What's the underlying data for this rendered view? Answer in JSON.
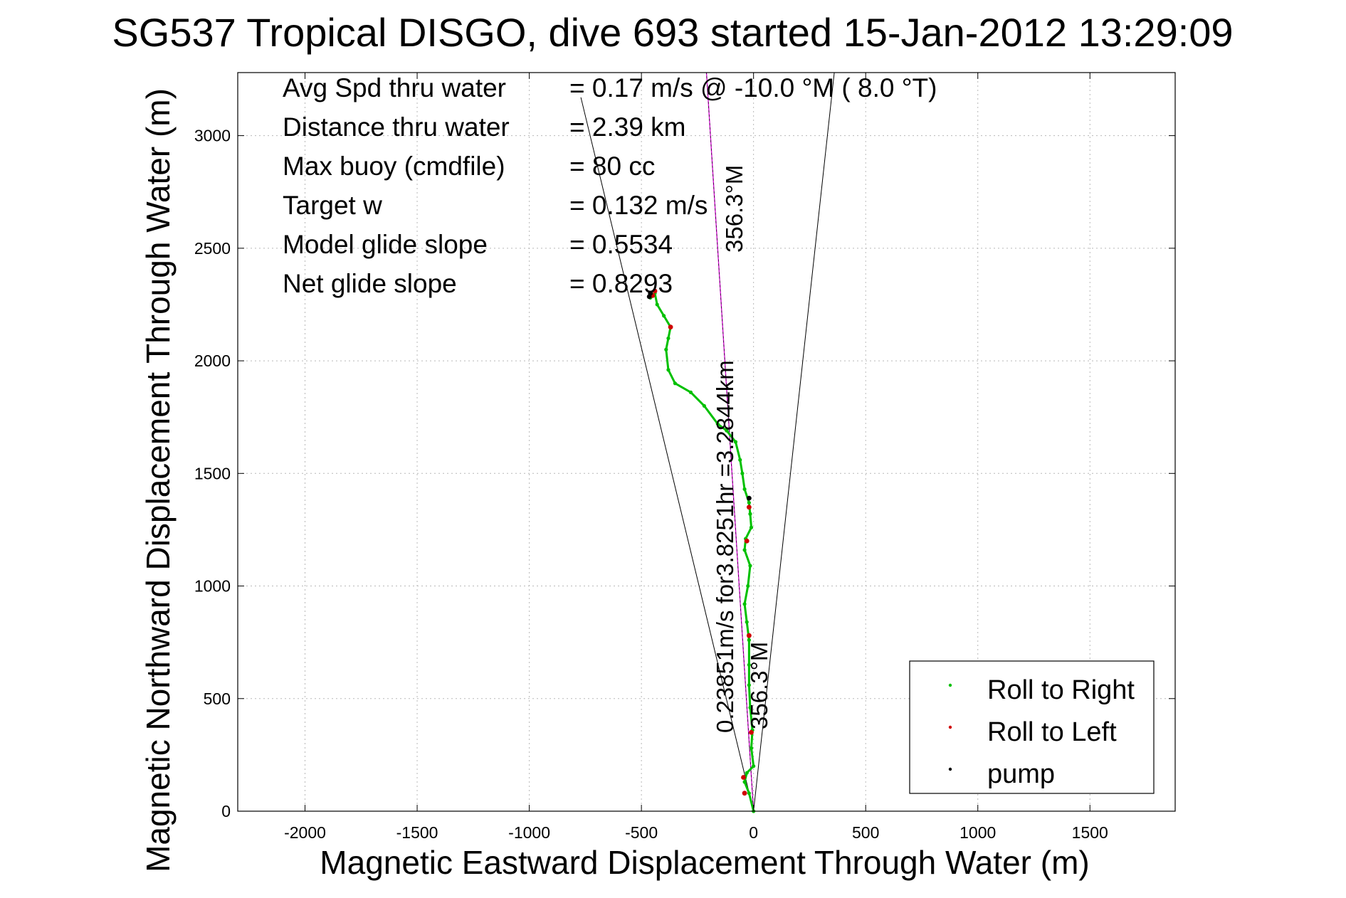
{
  "chart_data": {
    "type": "line",
    "title": "SG537 Tropical DISGO, dive 693 started 15-Jan-2012 13:29:09",
    "xlabel": "Magnetic Eastward Displacement Through Water (m)",
    "ylabel": "Magnetic Northward Displacement Through Water (m)",
    "xlim": [
      -2300,
      1880
    ],
    "ylim": [
      0,
      3280
    ],
    "xticks": [
      -2000,
      -1500,
      -1000,
      -500,
      0,
      500,
      1000,
      1500
    ],
    "yticks": [
      0,
      500,
      1000,
      1500,
      2000,
      2500,
      3000
    ],
    "xtick_labels": [
      "-2000",
      "-1500",
      "-1000",
      "-500",
      "0",
      "500",
      "1000",
      "1500"
    ],
    "ytick_labels": [
      "0",
      "500",
      "1000",
      "1500",
      "2000",
      "2500",
      "3000"
    ],
    "grid": true,
    "legend_position": "bottom-right",
    "stats": [
      {
        "label": "Avg Spd thru water",
        "value": "=  0.17 m/s @  -10.0 °M (  8.0 °T)"
      },
      {
        "label": "Distance thru water",
        "value": "=  2.39 km"
      },
      {
        "label": "Max buoy (cmdfile)",
        "value": "= 80 cc"
      },
      {
        "label": "Target w",
        "value": "= 0.132 m/s"
      },
      {
        "label": "Model glide slope",
        "value": "= 0.5534"
      },
      {
        "label": "Net glide slope",
        "value": "= 0.8293"
      }
    ],
    "heading_label_top": "356.3°M",
    "heading_label_bottom": "356.3°M",
    "speed_label": "0.23851m/s for3.8251hr =3.2844km",
    "cone_lines": {
      "origin": [
        0,
        0
      ],
      "left_end": [
        -770,
        3170
      ],
      "right_end": [
        360,
        3280
      ],
      "heading_end": [
        -210,
        3280
      ]
    },
    "series": [
      {
        "name": "Roll to Right",
        "color": "#00c000",
        "values": [
          [
            0,
            0
          ],
          [
            -20,
            80
          ],
          [
            -40,
            130
          ],
          [
            -30,
            170
          ],
          [
            0,
            200
          ],
          [
            -10,
            280
          ],
          [
            -5,
            360
          ],
          [
            -15,
            460
          ],
          [
            -20,
            560
          ],
          [
            -20,
            650
          ],
          [
            -20,
            760
          ],
          [
            -30,
            840
          ],
          [
            -40,
            920
          ],
          [
            -25,
            1000
          ],
          [
            -15,
            1090
          ],
          [
            -40,
            1160
          ],
          [
            -35,
            1210
          ],
          [
            -10,
            1260
          ],
          [
            -15,
            1320
          ],
          [
            -20,
            1370
          ],
          [
            -40,
            1430
          ],
          [
            -50,
            1500
          ],
          [
            -60,
            1560
          ],
          [
            -80,
            1640
          ],
          [
            -120,
            1690
          ],
          [
            -160,
            1720
          ],
          [
            -220,
            1800
          ],
          [
            -280,
            1860
          ],
          [
            -350,
            1900
          ],
          [
            -380,
            1960
          ],
          [
            -390,
            2050
          ],
          [
            -380,
            2100
          ],
          [
            -370,
            2150
          ],
          [
            -400,
            2200
          ],
          [
            -430,
            2250
          ],
          [
            -440,
            2300
          ],
          [
            -460,
            2280
          ]
        ]
      },
      {
        "name": "Roll to Left",
        "color": "#d00000",
        "values": [
          [
            -40,
            80
          ],
          [
            -45,
            150
          ],
          [
            -10,
            350
          ],
          [
            -20,
            780
          ],
          [
            -30,
            1200
          ],
          [
            -20,
            1350
          ],
          [
            -370,
            2150
          ],
          [
            -450,
            2290
          ],
          [
            -440,
            2310
          ]
        ]
      },
      {
        "name": "pump",
        "color": "#000000",
        "values": [
          [
            -20,
            1390
          ],
          [
            -465,
            2285
          ],
          [
            -460,
            2300
          ]
        ]
      }
    ]
  }
}
